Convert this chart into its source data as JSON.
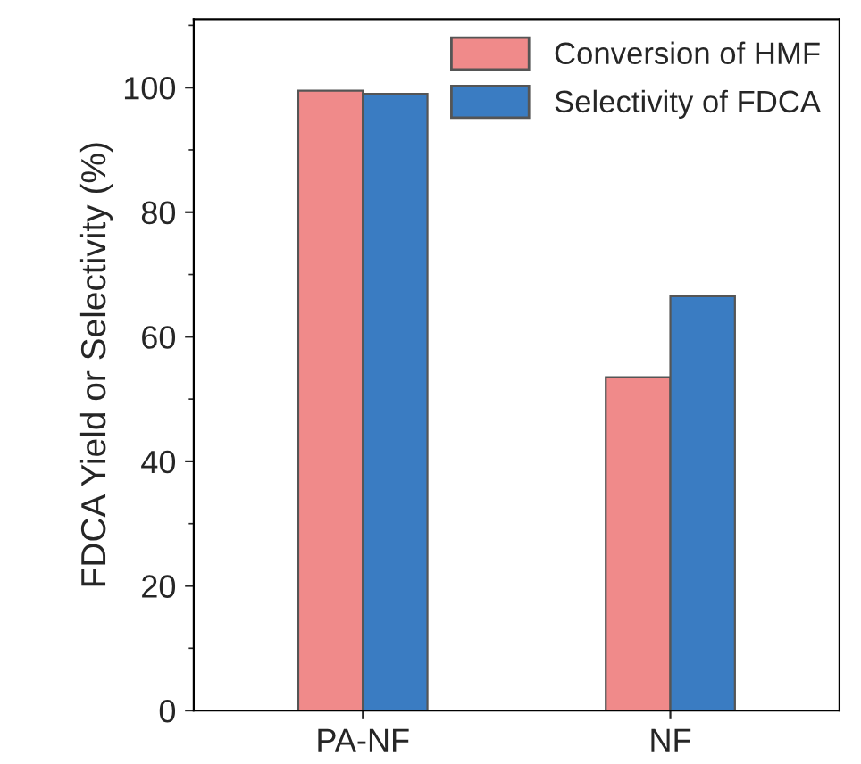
{
  "chart_data": {
    "type": "bar",
    "categories": [
      "PA-NF",
      "NF"
    ],
    "ylabel": "FDCA Yield or Selectivity (%)",
    "ylim": [
      0,
      111
    ],
    "yticks": [
      0,
      20,
      40,
      60,
      80,
      100
    ],
    "legend": "top right",
    "grid": false,
    "series": [
      {
        "name": "Conversion of HMF",
        "color": "#f08a8a",
        "values": [
          99.5,
          53.5
        ]
      },
      {
        "name": "Selectivity of FDCA",
        "color": "#3a7cc2",
        "values": [
          99,
          66.5
        ]
      }
    ]
  }
}
